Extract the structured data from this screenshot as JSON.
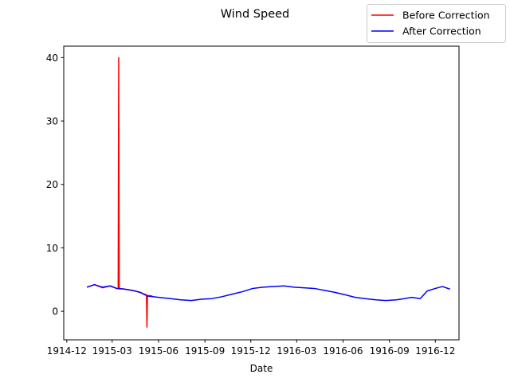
{
  "chart_data": {
    "type": "line",
    "title": "Wind Speed",
    "xlabel": "Date",
    "ylabel": "",
    "x_ticks": [
      "1914-12",
      "1915-03",
      "1915-06",
      "1915-09",
      "1915-12",
      "1916-03",
      "1916-06",
      "1916-09",
      "1916-12"
    ],
    "y_ticks": [
      0,
      10,
      20,
      30,
      40
    ],
    "xlim": [
      "1914-11-25",
      "1917-01-17"
    ],
    "ylim": [
      -4.5,
      41.8
    ],
    "legend_position": "top-right",
    "series": [
      {
        "name": "Before Correction",
        "color": "#ff0000",
        "x": [
          "1915-01-10",
          "1915-01-25",
          "1915-02-10",
          "1915-02-25",
          "1915-03-10",
          "1915-03-13",
          "1915-03-14",
          "1915-03-15",
          "1915-03-16",
          "1915-03-17",
          "1915-03-25",
          "1915-04-10",
          "1915-04-25",
          "1915-05-01",
          "1915-05-08",
          "1915-05-09",
          "1915-05-10",
          "1915-05-11",
          "1915-05-20"
        ],
        "y": [
          3.8,
          4.2,
          3.7,
          4.0,
          3.6,
          3.6,
          40.0,
          3.8,
          3.5,
          3.6,
          3.5,
          3.3,
          3.0,
          2.8,
          2.6,
          -2.5,
          2.2,
          2.5,
          2.4
        ]
      },
      {
        "name": "After Correction",
        "color": "#0000ff",
        "x": [
          "1915-01-10",
          "1915-01-25",
          "1915-02-10",
          "1915-02-25",
          "1915-03-10",
          "1915-03-25",
          "1915-04-10",
          "1915-04-25",
          "1915-05-10",
          "1915-06-01",
          "1915-06-25",
          "1915-07-15",
          "1915-08-05",
          "1915-08-25",
          "1915-09-15",
          "1915-10-05",
          "1915-10-25",
          "1915-11-15",
          "1915-12-05",
          "1915-12-25",
          "1916-01-15",
          "1916-02-05",
          "1916-02-25",
          "1916-03-15",
          "1916-04-05",
          "1916-04-25",
          "1916-05-15",
          "1916-06-05",
          "1916-06-25",
          "1916-07-15",
          "1916-08-05",
          "1916-08-25",
          "1916-09-15",
          "1916-10-01",
          "1916-10-15",
          "1916-11-01",
          "1916-11-15",
          "1916-12-01",
          "1916-12-15",
          "1916-12-30"
        ],
        "y": [
          3.8,
          4.2,
          3.8,
          4.0,
          3.6,
          3.5,
          3.3,
          3.0,
          2.4,
          2.2,
          2.0,
          1.8,
          1.7,
          1.9,
          2.0,
          2.3,
          2.7,
          3.1,
          3.6,
          3.8,
          3.9,
          4.0,
          3.8,
          3.7,
          3.6,
          3.3,
          3.0,
          2.6,
          2.2,
          2.0,
          1.8,
          1.7,
          1.8,
          2.0,
          2.2,
          2.0,
          3.2,
          3.6,
          3.9,
          3.5
        ]
      }
    ]
  }
}
